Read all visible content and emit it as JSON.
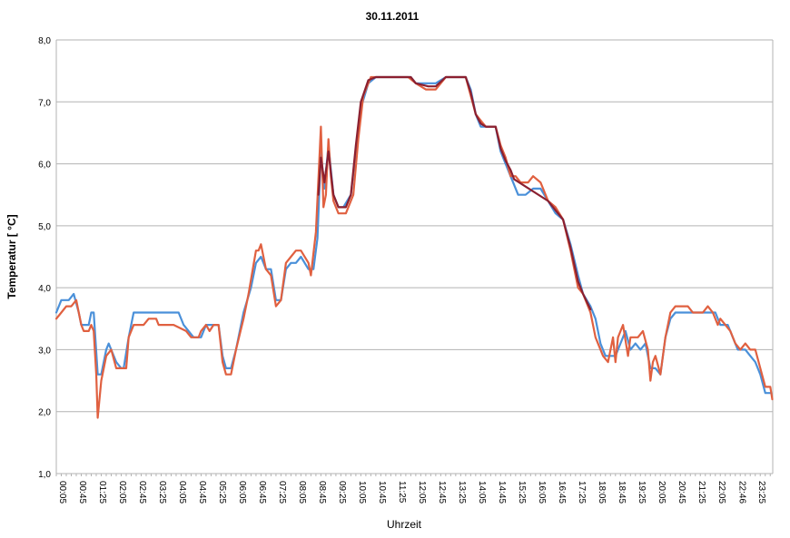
{
  "chart_data": {
    "type": "line",
    "title": "30.11.2011",
    "xlabel": "Uhrzeit",
    "ylabel": "Temperatur [ °C]",
    "ylim": [
      1.0,
      8.0
    ],
    "y_ticks": [
      "1,0",
      "2,0",
      "3,0",
      "4,0",
      "5,0",
      "6,0",
      "7,0",
      "8,0"
    ],
    "x_tick_labels": [
      "00:05",
      "00:45",
      "01:25",
      "02:05",
      "02:45",
      "03:25",
      "04:05",
      "04:45",
      "05:25",
      "06:05",
      "06:45",
      "07:25",
      "08:05",
      "08:45",
      "09:25",
      "10:05",
      "10:45",
      "11:25",
      "12:05",
      "12:45",
      "13:25",
      "14:05",
      "14:45",
      "15:25",
      "16:05",
      "16:45",
      "17:25",
      "18:05",
      "18:45",
      "19:25",
      "20:05",
      "20:45",
      "21:25",
      "22:05",
      "22:46",
      "23:25"
    ],
    "grid": "horizontal",
    "legend": "none",
    "series": [
      {
        "color": "#4a90d9",
        "points": [
          [
            "00:05",
            3.6
          ],
          [
            "00:15",
            3.8
          ],
          [
            "00:30",
            3.8
          ],
          [
            "00:40",
            3.9
          ],
          [
            "00:50",
            3.6
          ],
          [
            "00:55",
            3.4
          ],
          [
            "01:10",
            3.4
          ],
          [
            "01:15",
            3.6
          ],
          [
            "01:20",
            3.6
          ],
          [
            "01:28",
            2.6
          ],
          [
            "01:35",
            2.6
          ],
          [
            "01:45",
            3.0
          ],
          [
            "01:50",
            3.1
          ],
          [
            "02:05",
            2.8
          ],
          [
            "02:15",
            2.7
          ],
          [
            "02:20",
            2.7
          ],
          [
            "02:30",
            3.2
          ],
          [
            "02:40",
            3.6
          ],
          [
            "03:00",
            3.6
          ],
          [
            "03:40",
            3.6
          ],
          [
            "04:10",
            3.6
          ],
          [
            "04:20",
            3.4
          ],
          [
            "04:30",
            3.3
          ],
          [
            "04:40",
            3.2
          ],
          [
            "04:55",
            3.2
          ],
          [
            "05:05",
            3.4
          ],
          [
            "05:20",
            3.4
          ],
          [
            "05:30",
            3.4
          ],
          [
            "05:38",
            2.9
          ],
          [
            "05:45",
            2.7
          ],
          [
            "05:55",
            2.7
          ],
          [
            "06:05",
            3.0
          ],
          [
            "06:20",
            3.6
          ],
          [
            "06:35",
            4.0
          ],
          [
            "06:45",
            4.4
          ],
          [
            "06:55",
            4.5
          ],
          [
            "07:05",
            4.3
          ],
          [
            "07:15",
            4.3
          ],
          [
            "07:25",
            3.8
          ],
          [
            "07:35",
            3.8
          ],
          [
            "07:45",
            4.3
          ],
          [
            "07:55",
            4.4
          ],
          [
            "08:05",
            4.4
          ],
          [
            "08:15",
            4.5
          ],
          [
            "08:30",
            4.3
          ],
          [
            "08:40",
            4.3
          ],
          [
            "08:48",
            4.8
          ],
          [
            "08:55",
            6.2
          ],
          [
            "09:02",
            5.6
          ],
          [
            "09:10",
            6.3
          ],
          [
            "09:20",
            5.5
          ],
          [
            "09:30",
            5.3
          ],
          [
            "09:40",
            5.3
          ],
          [
            "09:55",
            5.5
          ],
          [
            "10:05",
            6.2
          ],
          [
            "10:15",
            6.9
          ],
          [
            "10:30",
            7.3
          ],
          [
            "10:45",
            7.4
          ],
          [
            "11:25",
            7.4
          ],
          [
            "11:55",
            7.4
          ],
          [
            "12:05",
            7.3
          ],
          [
            "12:30",
            7.3
          ],
          [
            "12:45",
            7.3
          ],
          [
            "13:05",
            7.4
          ],
          [
            "13:25",
            7.4
          ],
          [
            "13:45",
            7.4
          ],
          [
            "13:55",
            7.2
          ],
          [
            "14:05",
            6.8
          ],
          [
            "14:15",
            6.6
          ],
          [
            "14:25",
            6.6
          ],
          [
            "14:45",
            6.6
          ],
          [
            "14:55",
            6.2
          ],
          [
            "15:05",
            6.0
          ],
          [
            "15:20",
            5.7
          ],
          [
            "15:30",
            5.5
          ],
          [
            "15:45",
            5.5
          ],
          [
            "16:00",
            5.6
          ],
          [
            "16:15",
            5.6
          ],
          [
            "16:30",
            5.4
          ],
          [
            "16:45",
            5.2
          ],
          [
            "17:00",
            5.1
          ],
          [
            "17:15",
            4.7
          ],
          [
            "17:30",
            4.2
          ],
          [
            "17:40",
            3.9
          ],
          [
            "17:55",
            3.7
          ],
          [
            "18:05",
            3.5
          ],
          [
            "18:15",
            3.1
          ],
          [
            "18:25",
            2.9
          ],
          [
            "18:35",
            2.9
          ],
          [
            "18:45",
            2.9
          ],
          [
            "18:55",
            3.1
          ],
          [
            "19:05",
            3.3
          ],
          [
            "19:15",
            3.0
          ],
          [
            "19:25",
            3.1
          ],
          [
            "19:35",
            3.0
          ],
          [
            "19:45",
            3.1
          ],
          [
            "19:55",
            2.7
          ],
          [
            "20:05",
            2.7
          ],
          [
            "20:15",
            2.6
          ],
          [
            "20:25",
            3.2
          ],
          [
            "20:35",
            3.5
          ],
          [
            "20:45",
            3.6
          ],
          [
            "21:15",
            3.6
          ],
          [
            "21:45",
            3.6
          ],
          [
            "22:05",
            3.6
          ],
          [
            "22:15",
            3.4
          ],
          [
            "22:30",
            3.4
          ],
          [
            "22:40",
            3.2
          ],
          [
            "22:50",
            3.0
          ],
          [
            "23:05",
            3.0
          ],
          [
            "23:15",
            2.9
          ],
          [
            "23:25",
            2.8
          ],
          [
            "23:35",
            2.6
          ],
          [
            "23:45",
            2.3
          ],
          [
            "23:55",
            2.3
          ]
        ]
      },
      {
        "color": "#e06040",
        "points": [
          [
            "00:05",
            3.5
          ],
          [
            "00:15",
            3.6
          ],
          [
            "00:25",
            3.7
          ],
          [
            "00:35",
            3.7
          ],
          [
            "00:45",
            3.8
          ],
          [
            "00:55",
            3.4
          ],
          [
            "01:00",
            3.3
          ],
          [
            "01:10",
            3.3
          ],
          [
            "01:15",
            3.4
          ],
          [
            "01:20",
            3.3
          ],
          [
            "01:25",
            2.6
          ],
          [
            "01:28",
            1.9
          ],
          [
            "01:35",
            2.5
          ],
          [
            "01:45",
            2.9
          ],
          [
            "01:55",
            3.0
          ],
          [
            "02:05",
            2.7
          ],
          [
            "02:15",
            2.7
          ],
          [
            "02:25",
            2.7
          ],
          [
            "02:30",
            3.2
          ],
          [
            "02:40",
            3.4
          ],
          [
            "03:00",
            3.4
          ],
          [
            "03:10",
            3.5
          ],
          [
            "03:25",
            3.5
          ],
          [
            "03:30",
            3.4
          ],
          [
            "04:00",
            3.4
          ],
          [
            "04:25",
            3.3
          ],
          [
            "04:35",
            3.2
          ],
          [
            "04:50",
            3.2
          ],
          [
            "04:55",
            3.3
          ],
          [
            "05:05",
            3.4
          ],
          [
            "05:12",
            3.3
          ],
          [
            "05:20",
            3.4
          ],
          [
            "05:30",
            3.4
          ],
          [
            "05:38",
            2.8
          ],
          [
            "05:45",
            2.6
          ],
          [
            "05:55",
            2.6
          ],
          [
            "06:05",
            3.0
          ],
          [
            "06:20",
            3.5
          ],
          [
            "06:30",
            3.9
          ],
          [
            "06:45",
            4.6
          ],
          [
            "06:50",
            4.6
          ],
          [
            "06:55",
            4.7
          ],
          [
            "07:05",
            4.3
          ],
          [
            "07:15",
            4.2
          ],
          [
            "07:25",
            3.7
          ],
          [
            "07:35",
            3.8
          ],
          [
            "07:45",
            4.4
          ],
          [
            "07:55",
            4.5
          ],
          [
            "08:05",
            4.6
          ],
          [
            "08:15",
            4.6
          ],
          [
            "08:30",
            4.4
          ],
          [
            "08:35",
            4.2
          ],
          [
            "08:45",
            4.9
          ],
          [
            "08:55",
            6.6
          ],
          [
            "09:00",
            5.3
          ],
          [
            "09:05",
            5.5
          ],
          [
            "09:10",
            6.4
          ],
          [
            "09:15",
            5.8
          ],
          [
            "09:20",
            5.4
          ],
          [
            "09:30",
            5.2
          ],
          [
            "09:45",
            5.2
          ],
          [
            "10:00",
            5.5
          ],
          [
            "10:10",
            6.4
          ],
          [
            "10:20",
            7.1
          ],
          [
            "10:35",
            7.4
          ],
          [
            "11:25",
            7.4
          ],
          [
            "11:50",
            7.4
          ],
          [
            "12:05",
            7.3
          ],
          [
            "12:25",
            7.2
          ],
          [
            "12:45",
            7.2
          ],
          [
            "13:05",
            7.4
          ],
          [
            "13:25",
            7.4
          ],
          [
            "13:45",
            7.4
          ],
          [
            "13:55",
            7.1
          ],
          [
            "14:05",
            6.8
          ],
          [
            "14:15",
            6.7
          ],
          [
            "14:25",
            6.6
          ],
          [
            "14:45",
            6.6
          ],
          [
            "14:55",
            6.3
          ],
          [
            "15:05",
            6.1
          ],
          [
            "15:15",
            5.8
          ],
          [
            "15:25",
            5.8
          ],
          [
            "15:35",
            5.7
          ],
          [
            "15:50",
            5.7
          ],
          [
            "16:00",
            5.8
          ],
          [
            "16:15",
            5.7
          ],
          [
            "16:30",
            5.4
          ],
          [
            "16:45",
            5.3
          ],
          [
            "17:00",
            5.1
          ],
          [
            "17:15",
            4.6
          ],
          [
            "17:30",
            4.0
          ],
          [
            "17:40",
            3.9
          ],
          [
            "17:55",
            3.6
          ],
          [
            "18:05",
            3.2
          ],
          [
            "18:20",
            2.9
          ],
          [
            "18:30",
            2.8
          ],
          [
            "18:40",
            3.2
          ],
          [
            "18:45",
            2.8
          ],
          [
            "18:50",
            3.2
          ],
          [
            "19:00",
            3.4
          ],
          [
            "19:10",
            2.9
          ],
          [
            "19:15",
            3.2
          ],
          [
            "19:30",
            3.2
          ],
          [
            "19:40",
            3.3
          ],
          [
            "19:50",
            3.0
          ],
          [
            "19:55",
            2.5
          ],
          [
            "20:00",
            2.8
          ],
          [
            "20:05",
            2.9
          ],
          [
            "20:15",
            2.6
          ],
          [
            "20:25",
            3.2
          ],
          [
            "20:35",
            3.6
          ],
          [
            "20:45",
            3.7
          ],
          [
            "21:10",
            3.7
          ],
          [
            "21:20",
            3.6
          ],
          [
            "21:40",
            3.6
          ],
          [
            "21:50",
            3.7
          ],
          [
            "22:00",
            3.6
          ],
          [
            "22:10",
            3.4
          ],
          [
            "22:15",
            3.5
          ],
          [
            "22:25",
            3.4
          ],
          [
            "22:35",
            3.3
          ],
          [
            "22:45",
            3.1
          ],
          [
            "22:55",
            3.0
          ],
          [
            "23:05",
            3.1
          ],
          [
            "23:15",
            3.0
          ],
          [
            "23:25",
            3.0
          ],
          [
            "23:35",
            2.7
          ],
          [
            "23:45",
            2.4
          ],
          [
            "23:55",
            2.4
          ],
          [
            "23:59",
            2.2
          ]
        ]
      },
      {
        "color": "#8b2030",
        "points": [
          [
            "08:50",
            5.5
          ],
          [
            "08:55",
            6.1
          ],
          [
            "09:02",
            5.7
          ],
          [
            "09:10",
            6.2
          ],
          [
            "09:20",
            5.5
          ],
          [
            "09:30",
            5.3
          ],
          [
            "09:45",
            5.3
          ],
          [
            "09:55",
            5.5
          ],
          [
            "10:05",
            6.3
          ],
          [
            "10:15",
            7.0
          ],
          [
            "10:30",
            7.35
          ],
          [
            "10:45",
            7.4
          ],
          [
            "11:25",
            7.4
          ],
          [
            "11:55",
            7.4
          ],
          [
            "12:05",
            7.3
          ],
          [
            "12:30",
            7.25
          ],
          [
            "12:45",
            7.25
          ],
          [
            "13:05",
            7.4
          ],
          [
            "13:25",
            7.4
          ],
          [
            "13:45",
            7.4
          ],
          [
            "13:55",
            7.15
          ],
          [
            "14:05",
            6.8
          ],
          [
            "14:15",
            6.65
          ],
          [
            "14:25",
            6.6
          ],
          [
            "14:45",
            6.6
          ],
          [
            "14:55",
            6.25
          ],
          [
            "15:05",
            6.05
          ],
          [
            "15:15",
            5.9
          ],
          [
            "15:22",
            5.75
          ],
          [
            "16:30",
            5.4
          ],
          [
            "16:45",
            5.25
          ],
          [
            "17:00",
            5.1
          ],
          [
            "17:15",
            4.65
          ],
          [
            "17:30",
            4.1
          ],
          [
            "17:40",
            3.9
          ],
          [
            "17:55",
            3.65
          ]
        ]
      }
    ]
  }
}
